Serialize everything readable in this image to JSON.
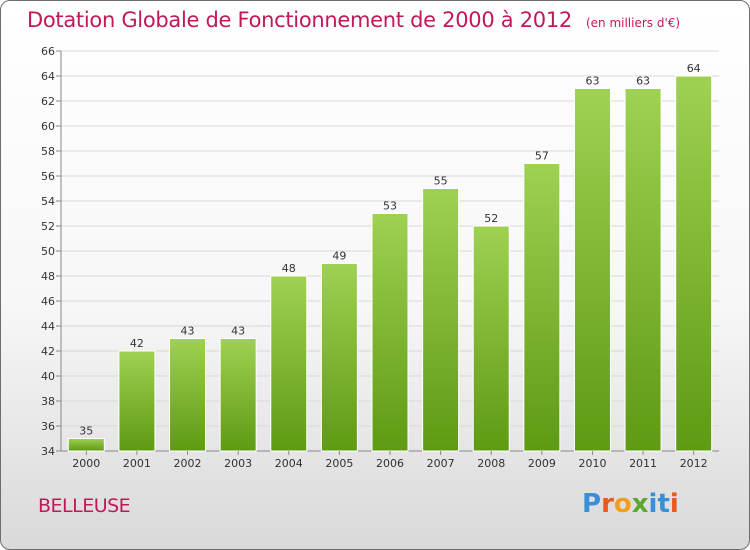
{
  "header": {
    "title": "Dotation Globale de Fonctionnement de 2000 à 2012",
    "unit": "(en milliers d'€)"
  },
  "footer": {
    "commune": "BELLEUSE",
    "brand": "Proxiti"
  },
  "colors": {
    "title": "#c2185b",
    "bar_light": "#9fd152",
    "bar_dark": "#5e9a13",
    "grid": "#d8d8d8"
  },
  "chart_data": {
    "type": "bar",
    "title": "Dotation Globale de Fonctionnement de 2000 à 2012",
    "subtitle": "(en milliers d'€)",
    "xlabel": "",
    "ylabel": "",
    "categories": [
      "2000",
      "2001",
      "2002",
      "2003",
      "2004",
      "2005",
      "2006",
      "2007",
      "2008",
      "2009",
      "2010",
      "2011",
      "2012"
    ],
    "values": [
      35,
      42,
      43,
      43,
      48,
      49,
      53,
      55,
      52,
      57,
      63,
      63,
      64
    ],
    "ylim": [
      34,
      66
    ],
    "yticks": [
      34,
      36,
      38,
      40,
      42,
      44,
      46,
      48,
      50,
      52,
      54,
      56,
      58,
      60,
      62,
      64,
      66
    ],
    "grid": true,
    "data_labels": true
  }
}
